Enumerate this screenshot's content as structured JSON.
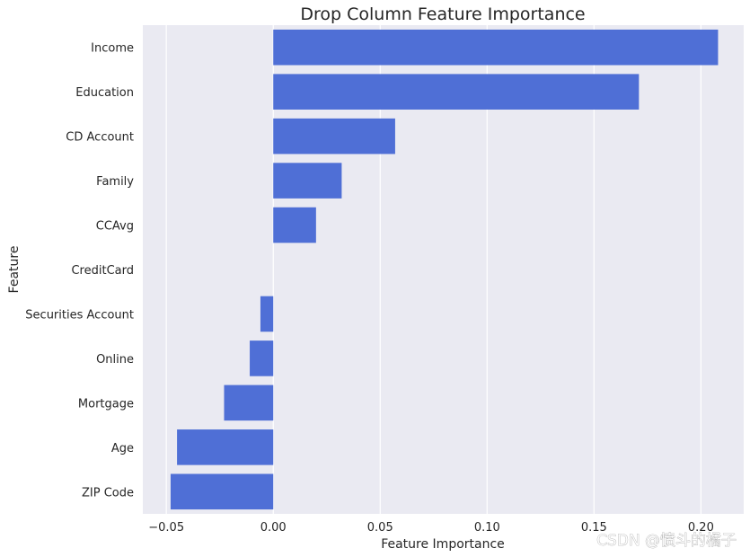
{
  "chart_data": {
    "type": "bar",
    "orientation": "horizontal",
    "title": "Drop Column Feature Importance",
    "xlabel": "Feature Importance",
    "ylabel": "Feature",
    "categories": [
      "Income",
      "Education",
      "CD Account",
      "Family",
      "CCAvg",
      "CreditCard",
      "Securities Account",
      "Online",
      "Mortgage",
      "Age",
      "ZIP Code"
    ],
    "values": [
      0.208,
      0.171,
      0.057,
      0.032,
      0.02,
      0.0,
      -0.006,
      -0.011,
      -0.023,
      -0.045,
      -0.048
    ],
    "xlim": [
      -0.061,
      0.22
    ],
    "xticks": [
      -0.05,
      0.0,
      0.05,
      0.1,
      0.15,
      0.2
    ],
    "xtick_labels": [
      "−0.05",
      "0.00",
      "0.05",
      "0.10",
      "0.15",
      "0.20"
    ],
    "grid": true,
    "background": "#eaeaf2",
    "bar_color": "#4f6fd6",
    "watermark": "CSDN @愤斗的橘子"
  }
}
